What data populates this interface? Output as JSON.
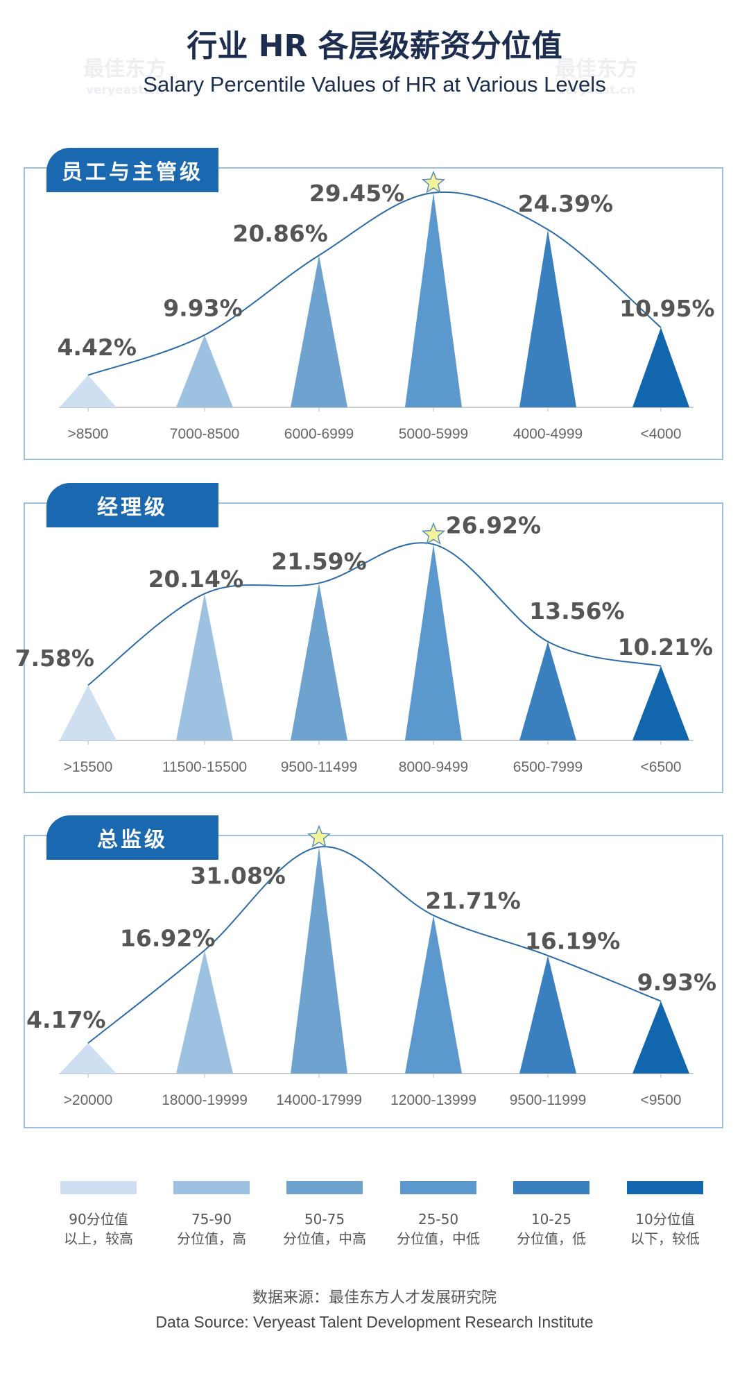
{
  "header": {
    "title_cn": "行业 HR 各层级薪资分位值",
    "title_en": "Salary Percentile Values of HR at Various Levels"
  },
  "watermark": {
    "cn": "最佳东方",
    "en": "veryeast.cn"
  },
  "colors": {
    "tab": "#1a68b0",
    "line": "#2a6aa8",
    "star": "#f4f39a",
    "percentiles": [
      "#cddff0",
      "#9dc1e0",
      "#6ea3d0",
      "#5a98cd",
      "#3a80bf",
      "#1166ae"
    ]
  },
  "chart_data": [
    {
      "type": "line",
      "title": "员工与主管级",
      "categories": [
        ">8500",
        "7000-8500",
        "6000-6999",
        "5000-5999",
        "4000-4999",
        "<4000"
      ],
      "values": [
        4.42,
        9.93,
        20.86,
        29.45,
        24.39,
        10.95
      ],
      "labels": [
        "4.42%",
        "9.93%",
        "20.86%",
        "29.45%",
        "24.39%",
        "10.95%"
      ],
      "highlight": "5000-5999"
    },
    {
      "type": "line",
      "title": "经理级",
      "categories": [
        ">15500",
        "11500-15500",
        "9500-11499",
        "8000-9499",
        "6500-7999",
        "<6500"
      ],
      "values": [
        7.58,
        20.14,
        21.59,
        26.92,
        13.56,
        10.21
      ],
      "labels": [
        "7.58%",
        "20.14%",
        "21.59%",
        "26.92%",
        "13.56%",
        "10.21%"
      ],
      "highlight": "8000-9499"
    },
    {
      "type": "line",
      "title": "总监级",
      "categories": [
        ">20000",
        "18000-19999",
        "14000-17999",
        "12000-13999",
        "9500-11999",
        "<9500"
      ],
      "values": [
        4.17,
        16.92,
        31.08,
        21.71,
        16.19,
        9.93
      ],
      "labels": [
        "4.17%",
        "16.92%",
        "31.08%",
        "21.71%",
        "16.19%",
        "9.93%"
      ],
      "highlight": "14000-17999"
    }
  ],
  "legend": [
    {
      "line1": "90分位值",
      "line2": "以上，较高"
    },
    {
      "line1": "75-90",
      "line2": "分位值，高"
    },
    {
      "line1": "50-75",
      "line2": "分位值，中高"
    },
    {
      "line1": "25-50",
      "line2": "分位值，中低"
    },
    {
      "line1": "10-25",
      "line2": "分位值，低"
    },
    {
      "line1": "10分位值",
      "line2": "以下，较低"
    }
  ],
  "source": {
    "cn": "数据来源：最佳东方人才发展研究院",
    "en": "Data Source: Veryeast Talent Development Research Institute"
  }
}
